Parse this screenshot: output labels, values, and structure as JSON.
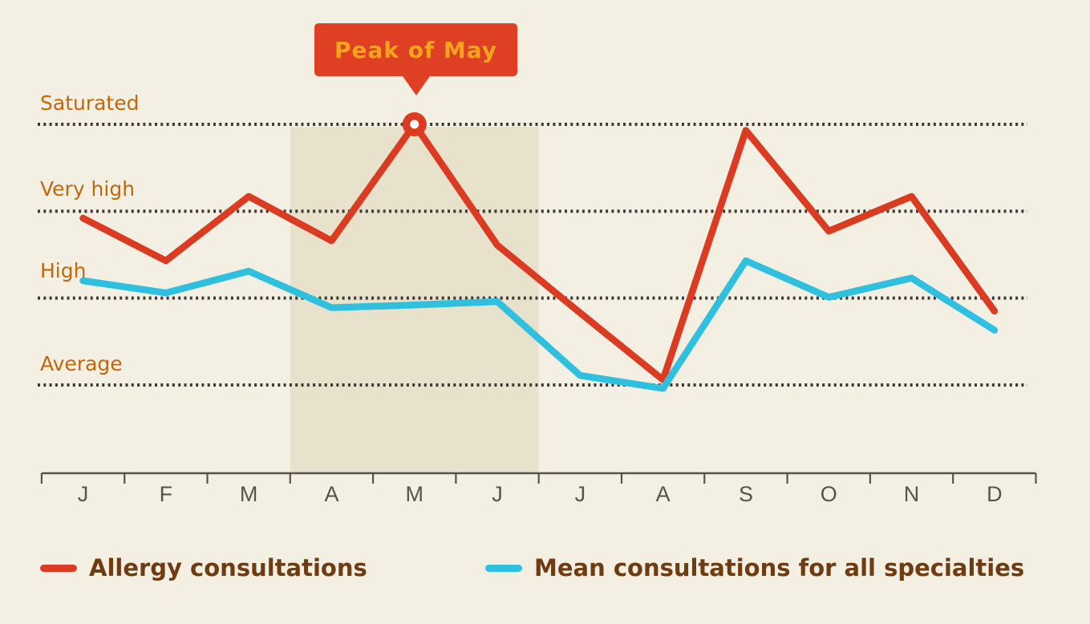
{
  "page": {
    "background": "#f4efe3"
  },
  "chart_data": {
    "type": "line",
    "title": "",
    "categories": [
      "J",
      "F",
      "M",
      "A",
      "M",
      "J",
      "J",
      "A",
      "S",
      "O",
      "N",
      "D"
    ],
    "y_axis_levels": [
      "Saturated",
      "Very high",
      "High",
      "Average"
    ],
    "level_scale": {
      "Average": 1,
      "High": 2,
      "Very high": 3,
      "Saturated": 4
    },
    "ylim": [
      0.8,
      4.1
    ],
    "grid": "dotted horizontal line at each level",
    "grid_color": "#3b3a36",
    "axis_color": "#56534a",
    "series": [
      {
        "name": "Allergy consultations",
        "color": "#db3b21",
        "values": [
          2.92,
          2.43,
          3.17,
          2.66,
          4.0,
          2.61,
          1.83,
          1.06,
          3.93,
          2.77,
          3.17,
          1.85
        ]
      },
      {
        "name": "Mean consultations for all specialties",
        "color": "#2fc0df",
        "values": [
          2.2,
          2.06,
          2.31,
          1.89,
          1.92,
          1.96,
          1.11,
          0.96,
          2.43,
          2.01,
          2.23,
          1.63
        ]
      }
    ],
    "annotation": {
      "label": "Peak of May",
      "month_index": 4,
      "value": 4.0,
      "marker": "ring",
      "box_color": "#df4024",
      "text_color": "#f8a41c"
    },
    "highlight_band": {
      "start_month_index": 3,
      "end_month_index": 5,
      "months_covered": [
        "A",
        "M",
        "J"
      ],
      "color": "#e8e1cc"
    },
    "legend_position": "bottom"
  },
  "legend": {
    "text_color": "#6e3c10"
  }
}
